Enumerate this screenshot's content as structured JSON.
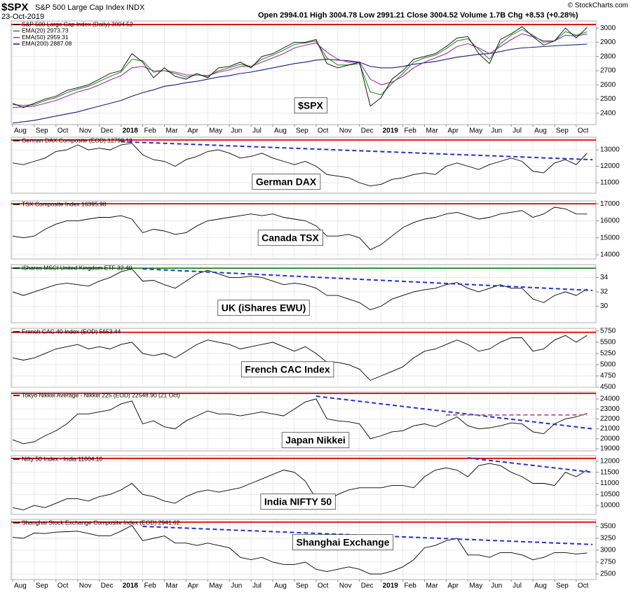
{
  "header": {
    "symbol": "$SPX",
    "name": "S&P 500 Large Cap Index",
    "exchange": "INDX",
    "date": "23-Oct-2019",
    "quote": "Open 2994.01 High 3004.78 Low 2991.21 Close 3004.52 Volume 1.7B Chg +8.53 (+0.28%)",
    "credit": "© StockCharts.com"
  },
  "chart_data": [
    {
      "type": "line",
      "label": "$SPX",
      "x": [
        "Aug",
        null,
        "Sep",
        null,
        "Oct",
        null,
        "Nov",
        null,
        "Dec",
        null,
        "2018",
        null,
        "Feb",
        null,
        "Mar",
        null,
        "Apr",
        null,
        "May",
        null,
        "Jun",
        null,
        "Jul",
        null,
        "Aug",
        null,
        "Sep",
        null,
        "Oct",
        null,
        "Nov",
        null,
        "Dec",
        null,
        "2019",
        null,
        "Feb",
        null,
        "Mar",
        null,
        "Apr",
        null,
        "May",
        null,
        "Jun",
        null,
        "Jul",
        null,
        "Aug",
        null,
        "Sep",
        null,
        "Oct",
        null
      ],
      "ylim": [
        2320,
        3050
      ],
      "yticks": [
        2400,
        2500,
        2600,
        2700,
        2800,
        2900,
        3000
      ],
      "grid": true,
      "reference_lines": [
        {
          "value": 3025,
          "color": "#e00000"
        }
      ],
      "series": [
        {
          "name": "S&P 500 Large Cap Index (Daily) 3004.52",
          "color": "#000000",
          "values": [
            2470,
            2440,
            2470,
            2500,
            2520,
            2560,
            2580,
            2600,
            2640,
            2680,
            2700,
            2820,
            2760,
            2650,
            2720,
            2660,
            2640,
            2680,
            2650,
            2720,
            2730,
            2760,
            2720,
            2800,
            2820,
            2860,
            2900,
            2900,
            2920,
            2750,
            2720,
            2740,
            2760,
            2450,
            2510,
            2640,
            2700,
            2780,
            2800,
            2820,
            2870,
            2930,
            2940,
            2820,
            2750,
            2920,
            2960,
            3010,
            2940,
            2880,
            2910,
            3000,
            2930,
            3004.52
          ]
        },
        {
          "name": "EMA(20) 2973.73",
          "color": "#2e8b2e",
          "values": [
            2460,
            2455,
            2460,
            2490,
            2510,
            2545,
            2570,
            2590,
            2625,
            2660,
            2690,
            2780,
            2770,
            2690,
            2700,
            2680,
            2655,
            2670,
            2660,
            2700,
            2720,
            2745,
            2730,
            2780,
            2810,
            2845,
            2885,
            2895,
            2910,
            2790,
            2740,
            2740,
            2750,
            2550,
            2530,
            2610,
            2680,
            2760,
            2790,
            2810,
            2855,
            2910,
            2925,
            2850,
            2780,
            2890,
            2950,
            2990,
            2950,
            2900,
            2910,
            2975,
            2950,
            2974
          ]
        },
        {
          "name": "EMA(50) 2959.31",
          "color": "#a030a0",
          "values": [
            2440,
            2445,
            2450,
            2470,
            2490,
            2520,
            2550,
            2570,
            2600,
            2635,
            2665,
            2720,
            2730,
            2700,
            2700,
            2690,
            2670,
            2670,
            2665,
            2690,
            2705,
            2730,
            2730,
            2760,
            2790,
            2820,
            2860,
            2880,
            2895,
            2830,
            2780,
            2760,
            2760,
            2640,
            2600,
            2620,
            2660,
            2720,
            2760,
            2790,
            2820,
            2870,
            2890,
            2860,
            2820,
            2870,
            2920,
            2960,
            2940,
            2910,
            2910,
            2950,
            2945,
            2959
          ]
        },
        {
          "name": "EMA(200) 2887.08",
          "color": "#1a1a80",
          "values": [
            2330,
            2340,
            2350,
            2365,
            2380,
            2395,
            2410,
            2430,
            2450,
            2470,
            2490,
            2520,
            2545,
            2565,
            2590,
            2600,
            2615,
            2625,
            2640,
            2655,
            2665,
            2680,
            2690,
            2705,
            2720,
            2735,
            2750,
            2760,
            2775,
            2780,
            2775,
            2770,
            2760,
            2730,
            2720,
            2720,
            2730,
            2745,
            2755,
            2765,
            2780,
            2795,
            2805,
            2815,
            2820,
            2835,
            2850,
            2860,
            2865,
            2870,
            2875,
            2880,
            2883,
            2887
          ]
        }
      ]
    },
    {
      "type": "line",
      "label": "German DAX",
      "ylim": [
        10360,
        13770
      ],
      "yticks": [
        11000,
        12000,
        13000
      ],
      "grid": true,
      "reference_lines": [
        {
          "value": 13600,
          "color": "#e00000"
        }
      ],
      "trendlines": [
        {
          "x": [
            10,
            53.5
          ],
          "y": [
            13500,
            12400
          ],
          "color": "#2233cc"
        }
      ],
      "series": [
        {
          "name": "German DAX Composite (EOD) 12798.19",
          "color": "#000000",
          "values": [
            12200,
            12100,
            12300,
            12500,
            12900,
            13000,
            13300,
            13000,
            13100,
            13000,
            13300,
            13400,
            12700,
            12400,
            12300,
            12000,
            12400,
            12600,
            12900,
            13000,
            12800,
            12500,
            12600,
            12800,
            12500,
            12300,
            12100,
            12300,
            12000,
            11500,
            11400,
            11300,
            11000,
            10800,
            10900,
            11200,
            11300,
            11500,
            11600,
            11500,
            12000,
            12200,
            12000,
            11800,
            12100,
            12300,
            12500,
            12300,
            11700,
            11600,
            12200,
            12400,
            12100,
            12798
          ]
        }
      ]
    },
    {
      "type": "line",
      "label": "Canada TSX",
      "ylim": [
        13750,
        17170
      ],
      "yticks": [
        14000,
        15000,
        16000,
        17000
      ],
      "grid": true,
      "reference_lines": [
        {
          "value": 17000,
          "color": "#e00000"
        }
      ],
      "series": [
        {
          "name": "TSX Composite Index 16395.98",
          "color": "#000000",
          "values": [
            15100,
            15000,
            15100,
            15500,
            15800,
            16000,
            16000,
            16100,
            16200,
            16200,
            16300,
            16100,
            15300,
            15500,
            15400,
            15200,
            15300,
            15700,
            16000,
            16100,
            16200,
            16300,
            16400,
            16300,
            16400,
            16200,
            16100,
            16000,
            15700,
            15100,
            15100,
            15200,
            15000,
            14300,
            14600,
            15100,
            15600,
            15900,
            16100,
            16200,
            16400,
            16500,
            16300,
            16100,
            16200,
            16400,
            16500,
            16600,
            16200,
            16400,
            16800,
            16700,
            16400,
            16396
          ]
        }
      ]
    },
    {
      "type": "line",
      "label": "UK (iShares EWU)",
      "ylim": [
        27.7,
        35.8
      ],
      "yticks": [
        30,
        32,
        34
      ],
      "grid": true,
      "reference_lines": [
        {
          "value": 35.3,
          "color": "#1a8a1a"
        }
      ],
      "trendlines": [
        {
          "x": [
            12,
            53.5
          ],
          "y": [
            35.2,
            32.2
          ],
          "color": "#2233cc"
        }
      ],
      "series": [
        {
          "name": "iShares MSCI United Kingdom ETF 32.40",
          "color": "#000000",
          "values": [
            32,
            31.5,
            32,
            32.5,
            33,
            33.2,
            33,
            32.8,
            33.5,
            34,
            34.8,
            35.2,
            33.5,
            33.6,
            33,
            32.5,
            33.5,
            34.5,
            35,
            34.5,
            34,
            34,
            34.2,
            34,
            33.5,
            33,
            33.2,
            33,
            32.5,
            31.5,
            31.5,
            31,
            30.5,
            29.5,
            30,
            31,
            31.5,
            32,
            32.3,
            32.5,
            33,
            33.3,
            32.5,
            32,
            32.5,
            33,
            32.5,
            32.5,
            31,
            30.5,
            31.5,
            32,
            31.5,
            32.4
          ]
        }
      ]
    },
    {
      "type": "line",
      "label": "French CAC Index",
      "ylim": [
        4500,
        5810
      ],
      "yticks": [
        4500,
        4750,
        5000,
        5250,
        5500,
        5750
      ],
      "grid": true,
      "reference_lines": [
        {
          "value": 5720,
          "color": "#e00000"
        }
      ],
      "series": [
        {
          "name": "French CAC 40 Index (EOD) 5653.44",
          "color": "#000000",
          "values": [
            5150,
            5100,
            5150,
            5250,
            5350,
            5400,
            5450,
            5350,
            5400,
            5350,
            5450,
            5500,
            5250,
            5200,
            5250,
            5150,
            5300,
            5450,
            5550,
            5500,
            5450,
            5350,
            5400,
            5450,
            5500,
            5400,
            5300,
            5400,
            5250,
            5050,
            5050,
            5000,
            4900,
            4650,
            4750,
            4850,
            4950,
            5150,
            5300,
            5350,
            5450,
            5550,
            5450,
            5300,
            5350,
            5500,
            5600,
            5600,
            5300,
            5350,
            5550,
            5650,
            5500,
            5653
          ]
        }
      ]
    },
    {
      "type": "line",
      "label": "Japan Nikkei",
      "ylim": [
        18790,
        24700
      ],
      "yticks": [
        19000,
        20000,
        21000,
        22000,
        23000,
        24000
      ],
      "grid": true,
      "reference_lines": [
        {
          "value": 24560,
          "color": "#e00000"
        }
      ],
      "trendlines": [
        {
          "x": [
            28,
            53.5
          ],
          "y": [
            24280,
            21000
          ],
          "color": "#2233cc"
        },
        {
          "x": [
            40,
            53
          ],
          "y": [
            22400,
            22400
          ],
          "color": "#c06090"
        }
      ],
      "series": [
        {
          "name": "Tokyo Nikkei Average - Nikkei 225 (EOD) 22548.90 (21 Oct)",
          "color": "#000000",
          "values": [
            19900,
            19500,
            19700,
            20300,
            20800,
            21500,
            22500,
            22500,
            22700,
            22900,
            23500,
            23800,
            21500,
            21800,
            21200,
            21000,
            21800,
            22300,
            22800,
            22500,
            22500,
            22300,
            22500,
            22700,
            22500,
            22300,
            23000,
            23700,
            24000,
            22000,
            21800,
            21700,
            21500,
            20000,
            20300,
            20700,
            20800,
            21300,
            21500,
            21200,
            21700,
            22200,
            21300,
            21000,
            21100,
            21300,
            21600,
            21500,
            20700,
            20500,
            21500,
            22000,
            22200,
            22549
          ]
        }
      ]
    },
    {
      "type": "line",
      "label": "India NIFTY 50",
      "ylim": [
        9590,
        12250
      ],
      "yticks": [
        10000,
        10500,
        11000,
        11500,
        12000
      ],
      "grid": true,
      "reference_lines": [
        {
          "value": 12130,
          "color": "#e00000"
        }
      ],
      "trendlines": [
        {
          "x": [
            42,
            53.5
          ],
          "y": [
            12150,
            11500
          ],
          "color": "#2233cc"
        }
      ],
      "series": [
        {
          "name": "Nifty 50 Index - India 11604.10",
          "color": "#000000",
          "values": [
            9900,
            9800,
            10000,
            9900,
            10100,
            10300,
            10300,
            10200,
            10400,
            10500,
            10700,
            11000,
            10500,
            10400,
            10200,
            10100,
            10400,
            10600,
            10700,
            10600,
            10700,
            10800,
            11000,
            11200,
            11400,
            11600,
            11500,
            11100,
            10300,
            10200,
            10500,
            10700,
            10800,
            10800,
            10800,
            10900,
            10900,
            10800,
            11300,
            11600,
            11700,
            11600,
            11300,
            11800,
            11900,
            11800,
            11500,
            11300,
            11000,
            11000,
            10900,
            11500,
            11300,
            11604
          ]
        }
      ]
    },
    {
      "type": "line",
      "label": "Shanghai Exchange",
      "x": [
        "Aug",
        null,
        "Sep",
        null,
        "Oct",
        null,
        "Nov",
        null,
        "Dec",
        null,
        "2018",
        null,
        "Feb",
        null,
        "Mar",
        null,
        "Apr",
        null,
        "May",
        null,
        "Jun",
        null,
        "Jul",
        null,
        "Aug",
        null,
        "Sep",
        null,
        "Oct",
        null,
        "Nov",
        null,
        "Dec",
        null,
        "2019",
        null,
        "Feb",
        null,
        "Mar",
        null,
        "Apr",
        null,
        "May",
        null,
        "Jun",
        null,
        "Jul",
        null,
        "Aug",
        null,
        "Sep",
        null,
        "Oct",
        null
      ],
      "ylim": [
        2382,
        3647
      ],
      "yticks": [
        2500,
        2750,
        3000,
        3250,
        3500
      ],
      "grid": true,
      "reference_lines": [
        {
          "value": 3590,
          "color": "#e00000"
        }
      ],
      "trendlines": [
        {
          "x": [
            12,
            53.5
          ],
          "y": [
            3500,
            3120
          ],
          "color": "#2233cc"
        }
      ],
      "series": [
        {
          "name": "Shanghai Stock Exchange Composite Index (EOD) 2941.62",
          "color": "#000000",
          "values": [
            3270,
            3250,
            3360,
            3350,
            3380,
            3390,
            3400,
            3350,
            3300,
            3300,
            3400,
            3520,
            3200,
            3250,
            3300,
            3150,
            3150,
            3100,
            3150,
            3100,
            3050,
            2850,
            2800,
            2850,
            2750,
            2700,
            2700,
            2750,
            2600,
            2550,
            2600,
            2650,
            2600,
            2500,
            2500,
            2560,
            2650,
            2800,
            3050,
            3100,
            3200,
            3250,
            2900,
            2900,
            2850,
            2950,
            2950,
            2900,
            2800,
            2850,
            2950,
            2950,
            2920,
            2942
          ]
        }
      ]
    }
  ]
}
